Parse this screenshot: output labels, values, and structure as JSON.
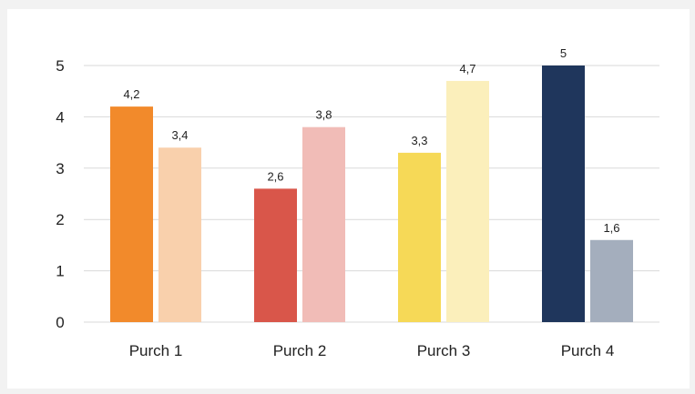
{
  "chart_data": {
    "type": "bar",
    "categories": [
      "Purch 1",
      "Purch 2",
      "Purch 3",
      "Purch 4"
    ],
    "series": [
      {
        "values": [
          4.2,
          2.6,
          3.3,
          5
        ],
        "labels": [
          "4,2",
          "2,6",
          "3,3",
          "5"
        ]
      },
      {
        "values": [
          3.4,
          3.8,
          4.7,
          1.6
        ],
        "labels": [
          "3,4",
          "3,8",
          "4,7",
          "1,6"
        ]
      }
    ],
    "colors": [
      [
        "#f28a2b",
        "#f9d0ac"
      ],
      [
        "#d9564a",
        "#f1bcb7"
      ],
      [
        "#f6d957",
        "#fbefbb"
      ],
      [
        "#1f365c",
        "#a4aebd"
      ]
    ],
    "ylim": [
      0,
      5
    ],
    "yticks": [
      {
        "value": 0,
        "label": "0"
      },
      {
        "value": 1,
        "label": "1"
      },
      {
        "value": 2,
        "label": "2"
      },
      {
        "value": 3,
        "label": "3"
      },
      {
        "value": 4,
        "label": "4"
      },
      {
        "value": 5,
        "label": "5"
      }
    ],
    "grid": true,
    "title": "",
    "xlabel": "",
    "ylabel": ""
  }
}
